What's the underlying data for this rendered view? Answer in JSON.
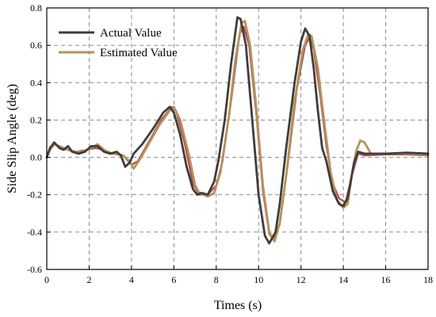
{
  "chart_data": {
    "type": "line",
    "xlabel": "Times (s)",
    "ylabel": "Side Slip Angle (deg)",
    "xlim": [
      0,
      18
    ],
    "ylim": [
      -0.6,
      0.8
    ],
    "xticks": [
      0,
      2,
      4,
      6,
      8,
      10,
      12,
      14,
      16,
      18
    ],
    "yticks": [
      -0.6,
      -0.4,
      -0.2,
      0.0,
      0.2,
      0.4,
      0.6,
      0.8
    ],
    "xtick_labels": [
      "0",
      "2",
      "4",
      "6",
      "8",
      "10",
      "12",
      "14",
      "16",
      "18"
    ],
    "ytick_labels": [
      "-0.6",
      "-0.4",
      "-0.2",
      "0.0",
      "0.2",
      "0.4",
      "0.6",
      "0.8"
    ],
    "grid": true,
    "legend_position": "top-left",
    "series": [
      {
        "name": "Actual Value",
        "color": "#3d3d3d",
        "points": [
          [
            0,
            0.0
          ],
          [
            0.15,
            0.05
          ],
          [
            0.35,
            0.08
          ],
          [
            0.6,
            0.05
          ],
          [
            0.8,
            0.04
          ],
          [
            1.0,
            0.06
          ],
          [
            1.2,
            0.03
          ],
          [
            1.5,
            0.02
          ],
          [
            1.8,
            0.03
          ],
          [
            2.1,
            0.06
          ],
          [
            2.4,
            0.06
          ],
          [
            2.7,
            0.03
          ],
          [
            3.0,
            0.02
          ],
          [
            3.3,
            0.03
          ],
          [
            3.5,
            0.01
          ],
          [
            3.7,
            -0.05
          ],
          [
            3.9,
            -0.03
          ],
          [
            4.1,
            0.02
          ],
          [
            4.5,
            0.07
          ],
          [
            5.0,
            0.15
          ],
          [
            5.5,
            0.24
          ],
          [
            5.8,
            0.27
          ],
          [
            6.0,
            0.24
          ],
          [
            6.3,
            0.12
          ],
          [
            6.6,
            -0.05
          ],
          [
            6.9,
            -0.17
          ],
          [
            7.1,
            -0.2
          ],
          [
            7.3,
            -0.19
          ],
          [
            7.6,
            -0.2
          ],
          [
            7.9,
            -0.13
          ],
          [
            8.1,
            -0.02
          ],
          [
            8.4,
            0.2
          ],
          [
            8.7,
            0.5
          ],
          [
            9.0,
            0.75
          ],
          [
            9.15,
            0.74
          ],
          [
            9.4,
            0.6
          ],
          [
            9.7,
            0.2
          ],
          [
            10.0,
            -0.2
          ],
          [
            10.3,
            -0.42
          ],
          [
            10.5,
            -0.46
          ],
          [
            10.8,
            -0.4
          ],
          [
            11.0,
            -0.25
          ],
          [
            11.3,
            0.05
          ],
          [
            11.7,
            0.4
          ],
          [
            12.0,
            0.62
          ],
          [
            12.2,
            0.69
          ],
          [
            12.4,
            0.65
          ],
          [
            12.6,
            0.48
          ],
          [
            12.8,
            0.25
          ],
          [
            13.0,
            0.05
          ],
          [
            13.2,
            -0.02
          ],
          [
            13.5,
            -0.18
          ],
          [
            13.8,
            -0.25
          ],
          [
            14.0,
            -0.26
          ],
          [
            14.2,
            -0.22
          ],
          [
            14.5,
            -0.03
          ],
          [
            14.7,
            0.03
          ],
          [
            15.0,
            0.02
          ],
          [
            16.0,
            0.02
          ],
          [
            17.0,
            0.025
          ],
          [
            18.0,
            0.02
          ]
        ]
      },
      {
        "name": "Estimated Value",
        "color": "#b8915a",
        "points": [
          [
            0,
            0.0
          ],
          [
            0.15,
            0.04
          ],
          [
            0.35,
            0.07
          ],
          [
            0.6,
            0.06
          ],
          [
            0.8,
            0.05
          ],
          [
            1.0,
            0.04
          ],
          [
            1.3,
            0.03
          ],
          [
            1.7,
            0.03
          ],
          [
            2.1,
            0.05
          ],
          [
            2.4,
            0.07
          ],
          [
            2.7,
            0.04
          ],
          [
            3.0,
            0.02
          ],
          [
            3.3,
            0.02
          ],
          [
            3.6,
            0.01
          ],
          [
            3.9,
            -0.02
          ],
          [
            4.1,
            -0.06
          ],
          [
            4.4,
            -0.01
          ],
          [
            4.8,
            0.07
          ],
          [
            5.3,
            0.17
          ],
          [
            5.8,
            0.25
          ],
          [
            6.0,
            0.27
          ],
          [
            6.3,
            0.2
          ],
          [
            6.7,
            0.02
          ],
          [
            7.0,
            -0.15
          ],
          [
            7.2,
            -0.19
          ],
          [
            7.6,
            -0.21
          ],
          [
            7.9,
            -0.19
          ],
          [
            8.2,
            -0.08
          ],
          [
            8.6,
            0.22
          ],
          [
            8.9,
            0.52
          ],
          [
            9.2,
            0.72
          ],
          [
            9.35,
            0.73
          ],
          [
            9.6,
            0.6
          ],
          [
            9.9,
            0.25
          ],
          [
            10.2,
            -0.15
          ],
          [
            10.5,
            -0.4
          ],
          [
            10.75,
            -0.45
          ],
          [
            11.0,
            -0.35
          ],
          [
            11.3,
            -0.1
          ],
          [
            11.7,
            0.3
          ],
          [
            12.1,
            0.58
          ],
          [
            12.35,
            0.66
          ],
          [
            12.5,
            0.65
          ],
          [
            12.8,
            0.48
          ],
          [
            13.0,
            0.28
          ],
          [
            13.2,
            0.1
          ],
          [
            13.4,
            -0.08
          ],
          [
            13.7,
            -0.23
          ],
          [
            14.0,
            -0.27
          ],
          [
            14.2,
            -0.25
          ],
          [
            14.4,
            -0.1
          ],
          [
            14.6,
            0.03
          ],
          [
            14.8,
            0.09
          ],
          [
            15.0,
            0.08
          ],
          [
            15.3,
            0.02
          ],
          [
            16.0,
            0.02
          ],
          [
            17.0,
            0.02
          ],
          [
            18.0,
            0.015
          ]
        ]
      },
      {
        "name": "",
        "color": "#b04a4e",
        "points": [
          [
            0,
            0.0
          ],
          [
            0.2,
            0.05
          ],
          [
            0.4,
            0.07
          ],
          [
            0.7,
            0.05
          ],
          [
            1.0,
            0.04
          ],
          [
            1.4,
            0.03
          ],
          [
            1.9,
            0.04
          ],
          [
            2.3,
            0.05
          ],
          [
            2.7,
            0.04
          ],
          [
            3.1,
            0.02
          ],
          [
            3.6,
            0.01
          ],
          [
            4.0,
            -0.04
          ],
          [
            4.3,
            -0.02
          ],
          [
            4.8,
            0.08
          ],
          [
            5.4,
            0.2
          ],
          [
            5.9,
            0.27
          ],
          [
            6.1,
            0.25
          ],
          [
            6.5,
            0.08
          ],
          [
            6.9,
            -0.14
          ],
          [
            7.2,
            -0.2
          ],
          [
            7.6,
            -0.2
          ],
          [
            8.0,
            -0.15
          ],
          [
            8.3,
            -0.02
          ],
          [
            8.7,
            0.3
          ],
          [
            9.1,
            0.66
          ],
          [
            9.3,
            0.7
          ],
          [
            9.55,
            0.6
          ],
          [
            9.9,
            0.22
          ],
          [
            10.2,
            -0.18
          ],
          [
            10.5,
            -0.41
          ],
          [
            10.7,
            -0.44
          ],
          [
            11.0,
            -0.36
          ],
          [
            11.4,
            -0.02
          ],
          [
            11.8,
            0.36
          ],
          [
            12.2,
            0.6
          ],
          [
            12.4,
            0.64
          ],
          [
            12.6,
            0.58
          ],
          [
            12.9,
            0.34
          ],
          [
            13.2,
            0.06
          ],
          [
            13.5,
            -0.14
          ],
          [
            13.8,
            -0.22
          ],
          [
            14.1,
            -0.24
          ],
          [
            14.4,
            -0.1
          ],
          [
            14.7,
            0.02
          ],
          [
            15.0,
            0.01
          ],
          [
            16.0,
            0.015
          ],
          [
            17.0,
            0.015
          ],
          [
            18.0,
            0.01
          ]
        ]
      }
    ]
  }
}
